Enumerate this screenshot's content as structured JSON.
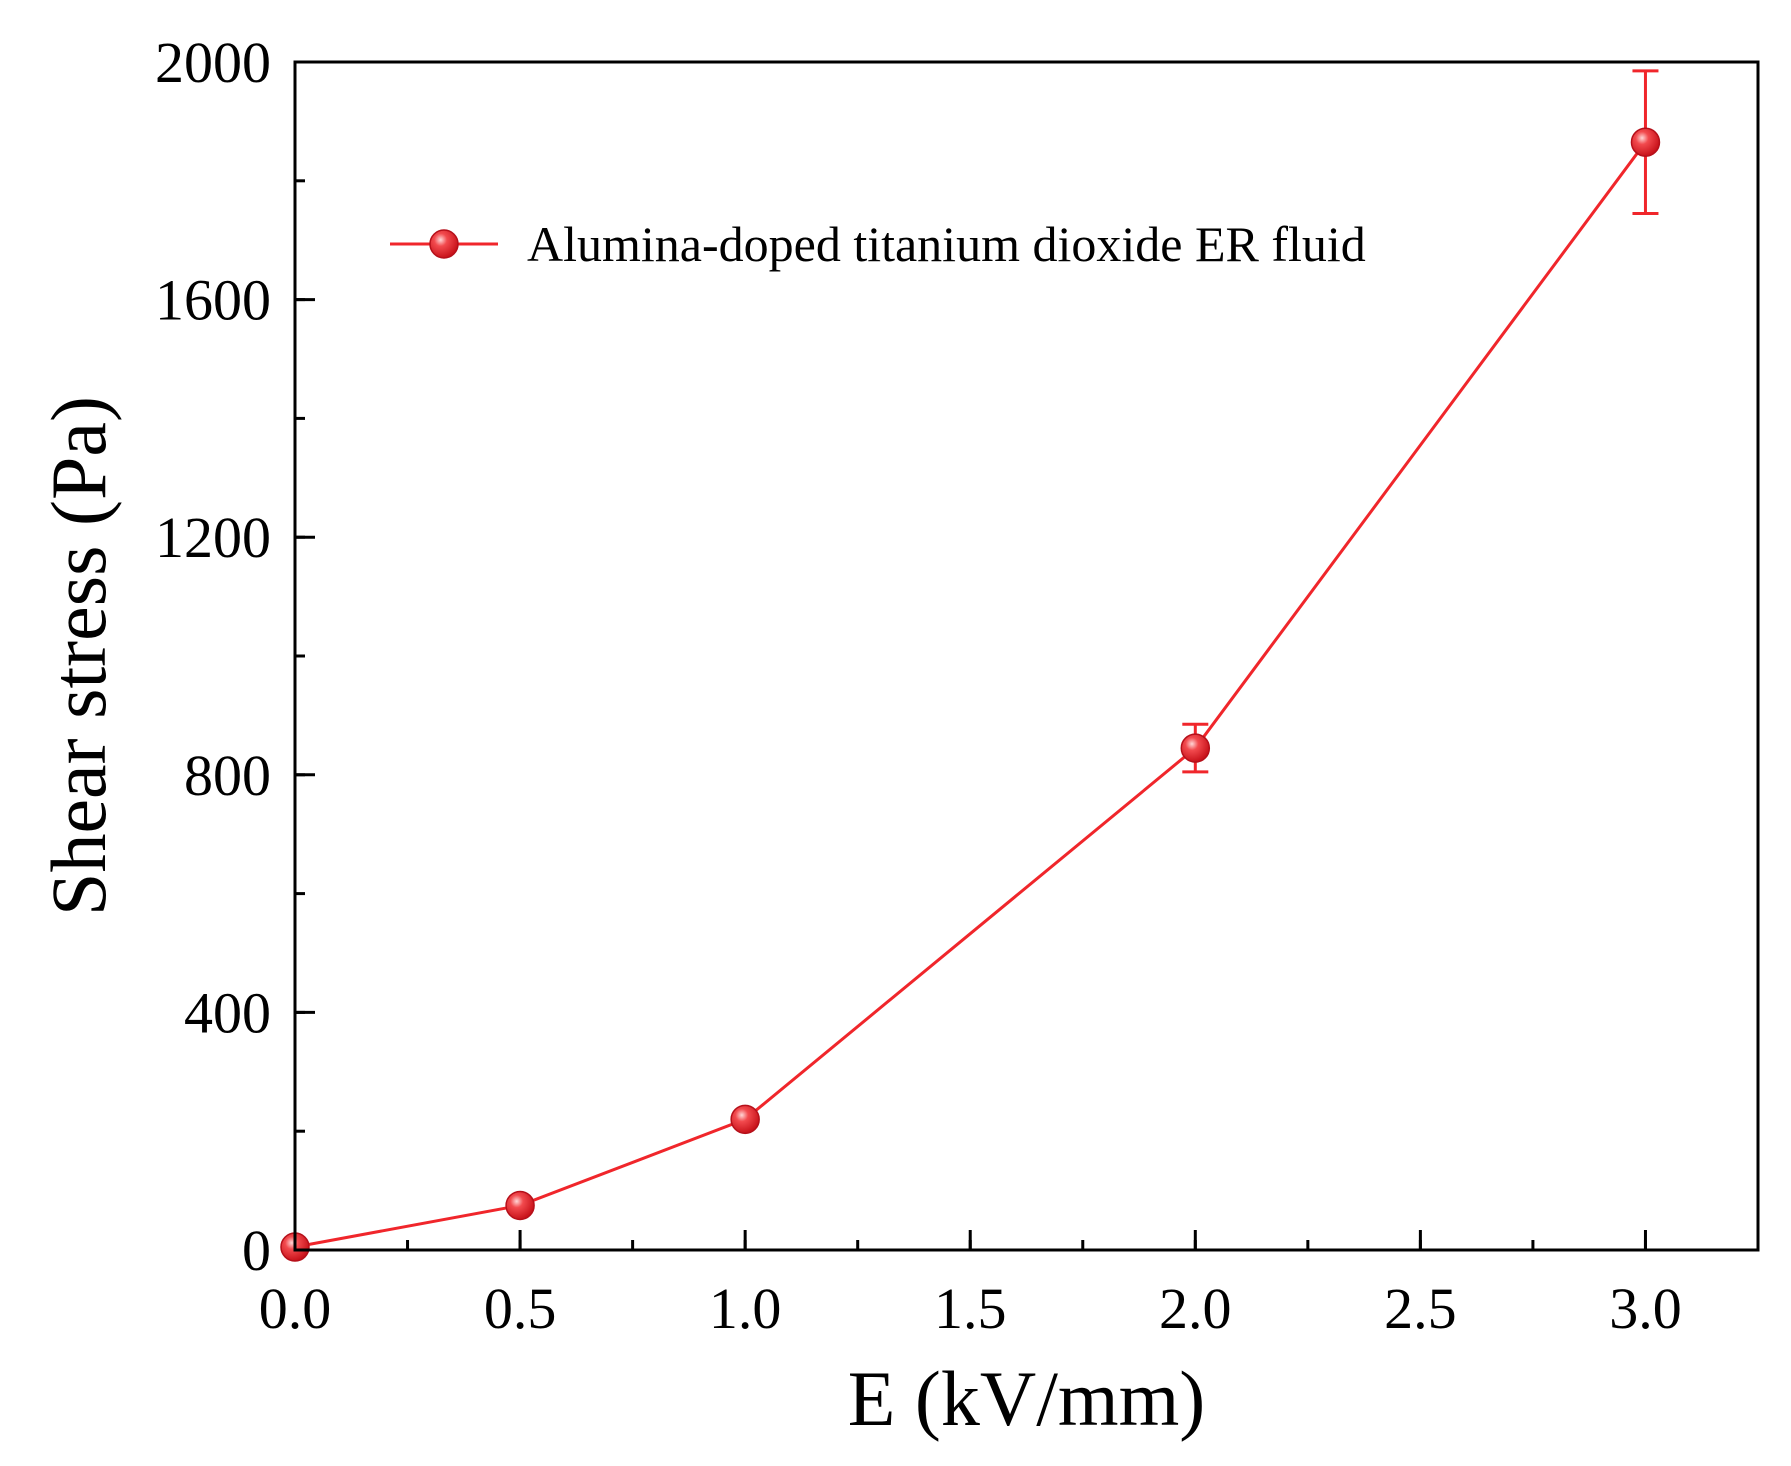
{
  "chart_data": {
    "type": "line",
    "title": "",
    "xlabel": "E (kV/mm)",
    "ylabel": "Shear stress (Pa)",
    "xlim": [
      0,
      3.25
    ],
    "ylim": [
      0,
      2000
    ],
    "x_ticks": [
      "0.0",
      "0.5",
      "1.0",
      "1.5",
      "2.0",
      "2.5",
      "3.0"
    ],
    "x_tick_values": [
      0,
      0.5,
      1.0,
      1.5,
      2.0,
      2.5,
      3.0
    ],
    "y_ticks": [
      "0",
      "400",
      "800",
      "1200",
      "1600",
      "2000"
    ],
    "y_tick_values": [
      0,
      400,
      800,
      1200,
      1600,
      2000
    ],
    "x_minor_step": 0.25,
    "y_minor_step": 200,
    "grid": false,
    "legend_position": "top-left",
    "series": [
      {
        "name": "Alumina-doped titanium dioxide ER fluid",
        "color": "#f0262b",
        "marker": "circle",
        "x": [
          0,
          0.5,
          1.0,
          2.0,
          3.0
        ],
        "y": [
          5,
          75,
          220,
          845,
          1865
        ],
        "error": [
          0,
          5,
          8,
          40,
          120
        ]
      }
    ]
  }
}
